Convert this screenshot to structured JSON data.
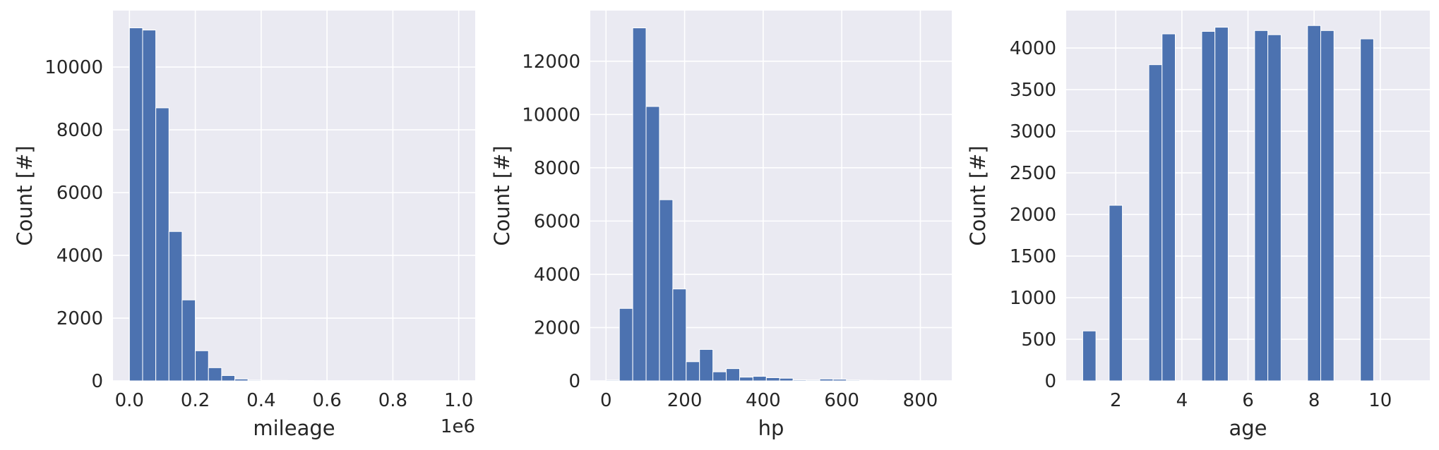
{
  "chart_data": [
    {
      "type": "bar",
      "xlabel": "mileage",
      "ylabel": "Count [#]",
      "x_offset_label": "1e6",
      "xlim": [
        -0.05,
        1.05
      ],
      "ylim": [
        0,
        11800
      ],
      "xticks": [
        0.0,
        0.2,
        0.4,
        0.6,
        0.8,
        1.0
      ],
      "xtick_labels": [
        "0.0",
        "0.2",
        "0.4",
        "0.6",
        "0.8",
        "1.0"
      ],
      "yticks": [
        0,
        2000,
        4000,
        6000,
        8000,
        10000
      ],
      "ytick_labels": [
        "0",
        "2000",
        "4000",
        "6000",
        "8000",
        "10000"
      ],
      "bin_edges": [
        0.0,
        0.04,
        0.08,
        0.12,
        0.16,
        0.2,
        0.24,
        0.28,
        0.32,
        0.36,
        0.4,
        0.44,
        0.48,
        0.52,
        0.56,
        0.6,
        0.64,
        0.68,
        0.72,
        0.76,
        0.8,
        0.84,
        0.88,
        0.92,
        0.96,
        1.0
      ],
      "values": [
        11250,
        11180,
        8700,
        4760,
        2580,
        960,
        420,
        170,
        60,
        25,
        15,
        15,
        12,
        10,
        5,
        5,
        5,
        3,
        3,
        2,
        2,
        2,
        2,
        1,
        1
      ],
      "color": "#4c72b0",
      "grid": true
    },
    {
      "type": "bar",
      "xlabel": "hp",
      "ylabel": "Count [#]",
      "xlim": [
        -40,
        880
      ],
      "ylim": [
        0,
        13900
      ],
      "xticks": [
        0,
        200,
        400,
        600,
        800
      ],
      "xtick_labels": [
        "0",
        "200",
        "400",
        "600",
        "800"
      ],
      "yticks": [
        0,
        2000,
        4000,
        6000,
        8000,
        10000,
        12000
      ],
      "ytick_labels": [
        "0",
        "2000",
        "4000",
        "6000",
        "8000",
        "10000",
        "12000"
      ],
      "bin_edges": [
        0,
        34,
        68,
        102,
        136,
        170,
        204,
        238,
        272,
        306,
        340,
        374,
        408,
        442,
        476,
        510,
        544,
        578,
        612,
        646,
        680,
        714,
        748,
        782,
        816,
        850
      ],
      "values": [
        30,
        2720,
        13250,
        10300,
        6800,
        3450,
        720,
        1180,
        340,
        460,
        140,
        170,
        120,
        100,
        35,
        30,
        70,
        60,
        30,
        20,
        15,
        10,
        10,
        5,
        5
      ],
      "color": "#4c72b0",
      "grid": true
    },
    {
      "type": "bar",
      "xlabel": "age",
      "ylabel": "Count [#]",
      "xlim": [
        0.5,
        11.5
      ],
      "ylim": [
        0,
        4450
      ],
      "xticks": [
        2,
        4,
        6,
        8,
        10
      ],
      "xtick_labels": [
        "2",
        "4",
        "6",
        "8",
        "10"
      ],
      "yticks": [
        0,
        500,
        1000,
        1500,
        2000,
        2500,
        3000,
        3500,
        4000
      ],
      "ytick_labels": [
        "0",
        "500",
        "1000",
        "1500",
        "2000",
        "2500",
        "3000",
        "3500",
        "4000"
      ],
      "bin_edges": [
        1.0,
        1.4,
        1.8,
        2.2,
        2.6,
        3.0,
        3.4,
        3.8,
        4.2,
        4.6,
        5.0,
        5.4,
        5.8,
        6.2,
        6.6,
        7.0,
        7.4,
        7.8,
        8.2,
        8.6,
        9.0,
        9.4,
        9.8,
        10.2,
        10.6,
        11.0
      ],
      "values": [
        600,
        0,
        2110,
        0,
        0,
        3800,
        4170,
        0,
        0,
        4200,
        4250,
        0,
        0,
        4210,
        4160,
        0,
        0,
        4270,
        4210,
        0,
        0,
        4110,
        0,
        0,
        0
      ],
      "color": "#4c72b0",
      "grid": true
    }
  ]
}
